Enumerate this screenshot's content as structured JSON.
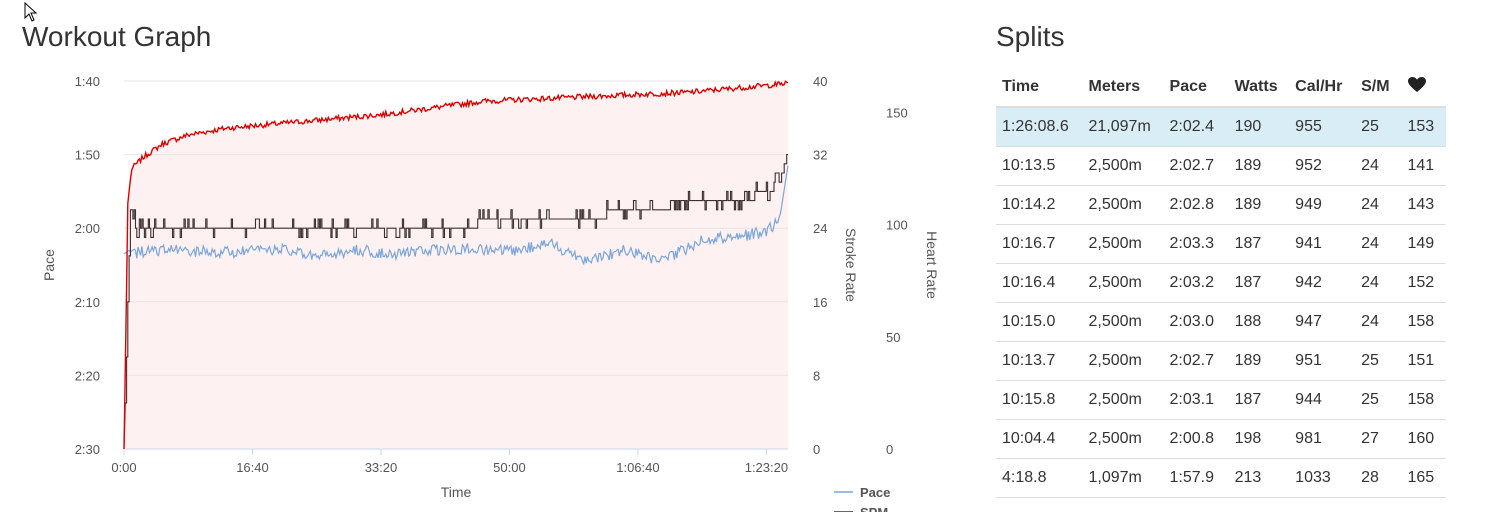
{
  "workout_graph": {
    "title": "Workout Graph",
    "x_axis_label": "Time",
    "left_axis_label": "Pace",
    "stroke_axis_label": "Stroke Rate",
    "hr_axis_label": "Heart Rate",
    "legend": {
      "pace": "Pace",
      "spm": "SPM"
    },
    "colors": {
      "pace": "#7aa6dc",
      "spm": "#3c2f2f",
      "heart_rate": "#e00000",
      "hr_fill": "#fdf1f1",
      "grid": "#e6e6e6"
    }
  },
  "chart_data": {
    "type": "line",
    "title": "Workout Graph",
    "xlabel": "Time",
    "x_ticks": [
      "0:00",
      "16:40",
      "33:20",
      "50:00",
      "1:06:40",
      "1:23:20"
    ],
    "x_tick_seconds": [
      0,
      1000,
      2000,
      3000,
      4000,
      5000
    ],
    "xlim": [
      0,
      5168
    ],
    "pace_axis": {
      "label": "Pace",
      "ticks": [
        "1:40",
        "1:50",
        "2:00",
        "2:10",
        "2:20",
        "2:30"
      ],
      "range": [
        "1:40",
        "2:30"
      ],
      "reversed": true
    },
    "stroke_axis": {
      "label": "Stroke Rate",
      "ticks": [
        "40",
        "32",
        "24",
        "16",
        "8",
        "0"
      ],
      "range": [
        0,
        40
      ]
    },
    "hr_axis": {
      "label": "Heart Rate",
      "ticks": [
        "150",
        "100",
        "50",
        "0"
      ],
      "range": [
        0,
        164
      ]
    },
    "series": [
      {
        "name": "Pace",
        "axis": "pace",
        "x": [
          0,
          40,
          100,
          300,
          600,
          900,
          1200,
          1500,
          1800,
          2100,
          2400,
          2700,
          3000,
          3300,
          3600,
          3900,
          4200,
          4500,
          4800,
          5000,
          5100,
          5168
        ],
        "y": [
          "2:03.5",
          "2:03.0",
          "2:03.3",
          "2:03.0",
          "2:03.2",
          "2:03.3",
          "2:02.8",
          "2:04.0",
          "2:03.0",
          "2:03.5",
          "2:03.0",
          "2:02.8",
          "2:03.2",
          "2:02.0",
          "2:04.3",
          "2:03.0",
          "2:04.5",
          "2:01.5",
          "2:01.0",
          "2:00.5",
          "1:59.0",
          "1:51.5"
        ]
      },
      {
        "name": "SPM",
        "axis": "stroke",
        "x": [
          0,
          50,
          100,
          1000,
          1500,
          2000,
          2500,
          3000,
          3500,
          4000,
          4500,
          4800,
          5000,
          5100,
          5168
        ],
        "y": [
          0,
          26,
          24,
          24,
          24,
          24,
          24,
          25,
          25,
          26,
          27,
          27,
          28,
          29,
          32
        ]
      },
      {
        "name": "Heart Rate",
        "axis": "hr",
        "x": [
          0,
          30,
          60,
          150,
          300,
          500,
          800,
          1200,
          1600,
          2000,
          2400,
          2800,
          3200,
          3600,
          4000,
          4400,
          4800,
          5000,
          5168
        ],
        "y": [
          0,
          110,
          125,
          130,
          136,
          140,
          143,
          145,
          147,
          149,
          152,
          155,
          156,
          157,
          158,
          159,
          161,
          162,
          163
        ]
      }
    ]
  },
  "splits": {
    "title": "Splits",
    "columns": [
      "Time",
      "Meters",
      "Pace",
      "Watts",
      "Cal/Hr",
      "S/M",
      "heart-icon"
    ],
    "rows": [
      [
        "1:26:08.6",
        "21,097m",
        "2:02.4",
        "190",
        "955",
        "25",
        "153"
      ],
      [
        "10:13.5",
        "2,500m",
        "2:02.7",
        "189",
        "952",
        "24",
        "141"
      ],
      [
        "10:14.2",
        "2,500m",
        "2:02.8",
        "189",
        "949",
        "24",
        "143"
      ],
      [
        "10:16.7",
        "2,500m",
        "2:03.3",
        "187",
        "941",
        "24",
        "149"
      ],
      [
        "10:16.4",
        "2,500m",
        "2:03.2",
        "187",
        "942",
        "24",
        "152"
      ],
      [
        "10:15.0",
        "2,500m",
        "2:03.0",
        "188",
        "947",
        "24",
        "158"
      ],
      [
        "10:13.7",
        "2,500m",
        "2:02.7",
        "189",
        "951",
        "25",
        "151"
      ],
      [
        "10:15.8",
        "2,500m",
        "2:03.1",
        "187",
        "944",
        "25",
        "158"
      ],
      [
        "10:04.4",
        "2,500m",
        "2:00.8",
        "198",
        "981",
        "27",
        "160"
      ],
      [
        "4:18.8",
        "1,097m",
        "1:57.9",
        "213",
        "1033",
        "28",
        "165"
      ]
    ],
    "highlight_color": "#d9edf7"
  }
}
